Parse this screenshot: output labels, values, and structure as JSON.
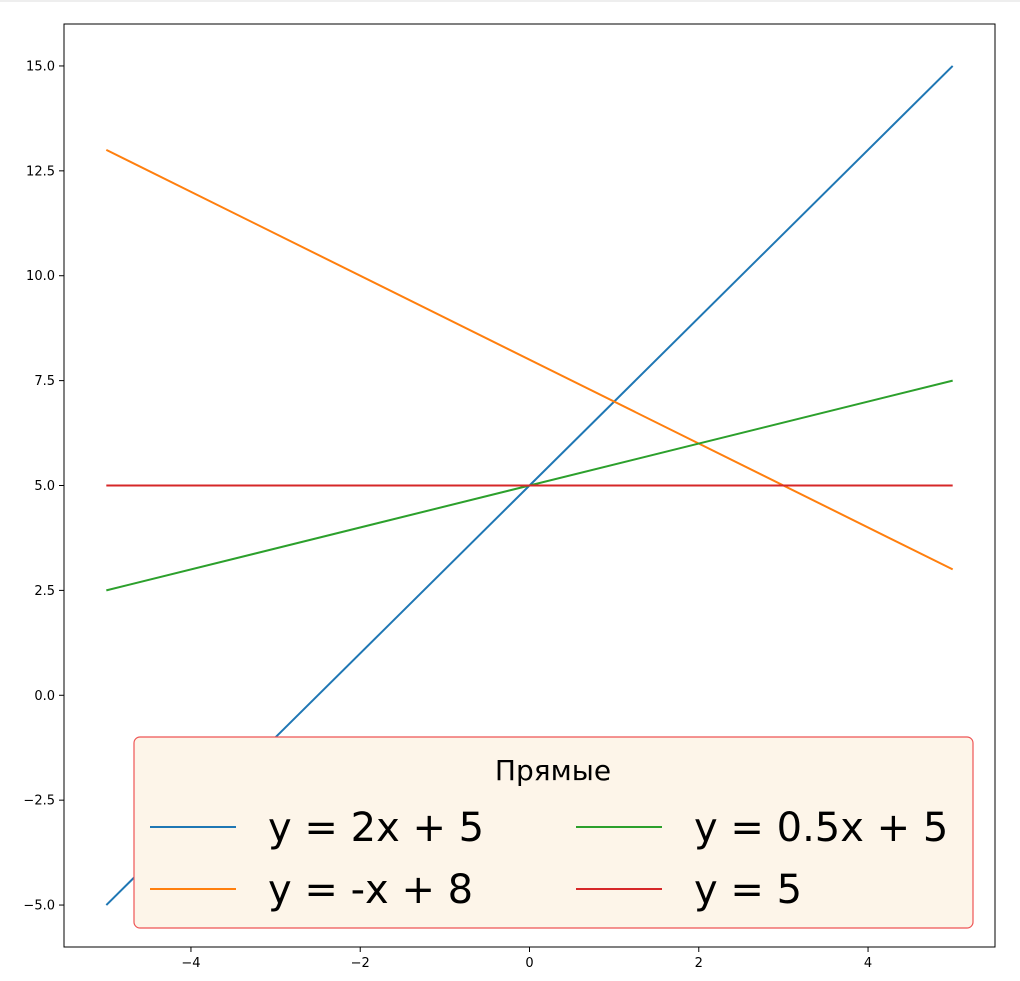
{
  "chart_data": {
    "type": "line",
    "title": "",
    "xlabel": "",
    "ylabel": "",
    "xlim": [
      -5.5,
      5.5
    ],
    "ylim": [
      -6.0,
      16.0
    ],
    "x_ticks": [
      -4,
      -2,
      0,
      2,
      4
    ],
    "x_tick_labels": [
      "−4",
      "−2",
      "0",
      "2",
      "4"
    ],
    "y_ticks": [
      -5.0,
      -2.5,
      0.0,
      2.5,
      5.0,
      7.5,
      10.0,
      12.5,
      15.0
    ],
    "y_tick_labels": [
      "−5.0",
      "−2.5",
      "0.0",
      "2.5",
      "5.0",
      "7.5",
      "10.0",
      "12.5",
      "15.0"
    ],
    "grid": false,
    "series": [
      {
        "name": "y = 2x + 5",
        "color": "#1f77b4",
        "x": [
          -5,
          5
        ],
        "y": [
          -5,
          15
        ]
      },
      {
        "name": "y = -x + 8",
        "color": "#ff7f0e",
        "x": [
          -5,
          5
        ],
        "y": [
          13,
          3
        ]
      },
      {
        "name": "y = 0.5x + 5",
        "color": "#2ca02c",
        "x": [
          -5,
          5
        ],
        "y": [
          2.5,
          7.5
        ]
      },
      {
        "name": "y = 5",
        "color": "#d62728",
        "x": [
          -5,
          5
        ],
        "y": [
          5,
          5
        ]
      }
    ],
    "legend": {
      "title": "Прямые",
      "placement": "lower-right",
      "columns": 2,
      "facecolor": "#fdf5e9",
      "edgecolor": "#ee5555"
    }
  }
}
